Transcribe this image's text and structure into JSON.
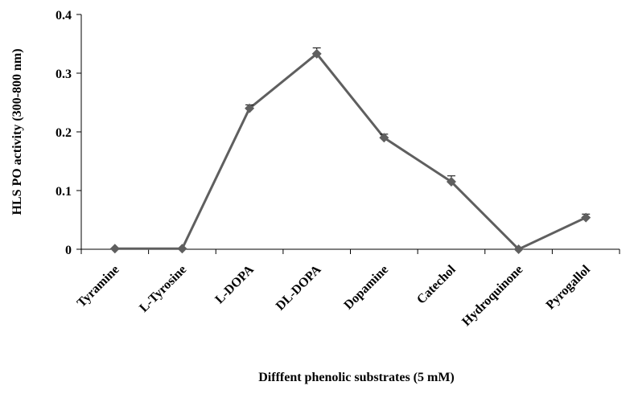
{
  "chart_data": {
    "type": "line",
    "x_label": "Difffent phenolic substrates (5 mM)",
    "y_label": "HLS PO activity  (300-800 nm)",
    "categories": [
      "Tyramine",
      "L-Tyrosine",
      "L-DOPA",
      "DL-DOPA",
      "Dopamine",
      "Catechol",
      "Hydroquinone",
      "Pyrogallol"
    ],
    "values": [
      0.001,
      0.001,
      0.24,
      0.333,
      0.19,
      0.115,
      0,
      0.054
    ],
    "errors": [
      0,
      0,
      0.006,
      0.01,
      0.006,
      0.01,
      0,
      0.006
    ],
    "color": "#5f5f5f",
    "ylim": [
      0,
      0.4
    ],
    "yticks": [
      0,
      0.1,
      0.2,
      0.3,
      0.4
    ],
    "grid": false
  }
}
